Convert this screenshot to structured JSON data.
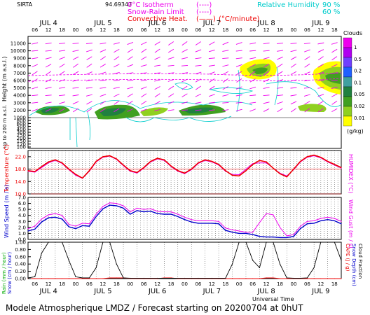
{
  "header": {
    "station": "SIRTA",
    "altitude": "94.69347",
    "legend_isotherm": "0°C Isotherm",
    "legend_isotherm_sym": "(----)",
    "legend_snowrain": "Snow-Rain Limit",
    "legend_snowrain_sym": "(----)",
    "legend_convective": "Convective Heat.",
    "legend_convective_sym": "(——)",
    "legend_convective_unit": "(°C/minute)",
    "legend_rh": "Relative Humidity",
    "legend_rh_90": "90 %",
    "legend_rh_60": "60 %"
  },
  "axes": {
    "day_labels": [
      "JUL 4",
      "JUL 5",
      "JUL 6",
      "JUL 7",
      "JUL 8",
      "JUL 9"
    ],
    "hour_labels": [
      "06",
      "12",
      "18",
      "00",
      "06",
      "12",
      "18",
      "00",
      "06",
      "12",
      "18",
      "00",
      "06",
      "12",
      "18",
      "00",
      "06",
      "12",
      "18",
      "00",
      "06",
      "12",
      "18"
    ],
    "bottom_title": "Universal Time",
    "panel1_ylabel": "Height (m a.s.l.)",
    "panel1_ylabel2": "Up to 200 m a.s.l.",
    "panel2_ylabel": "Temperature (°C)",
    "panel2_ylabel2": "HUMIDEX (°C)",
    "panel3_ylabel": "Wind Speed (m / s)",
    "panel3_ylabel2": "Wind Gust (m / s)",
    "panel4_ylabel": "Rain (mm / hour)",
    "panel4_ylabel_b": "Snow (cm / hour)",
    "panel4_ylabel2": "CAPE (J / g)",
    "panel4_ylabel2_b": "Snow Depth (cm)",
    "panel4_ylabel2_c": "Cloud Fraction"
  },
  "clouds_legend": {
    "title": "Clouds",
    "unit": "(g/kg)",
    "ticks": [
      "1",
      "0.5",
      "0.2",
      "0.1",
      "0.05",
      "0.02",
      "0.01"
    ],
    "colors": [
      "#ee00ee",
      "#b000f0",
      "#7040ff",
      "#2060ff",
      "#40a0a0",
      "#208040",
      "#40a020",
      "#90d020",
      "#ffff00"
    ]
  },
  "footer": {
    "text": "Modele Atmospherique LMDZ / Forecast starting on 20200704 at 0hUT"
  },
  "chart_data": [
    {
      "type": "heatmap",
      "name": "cloud-height",
      "y_ticks_upper": [
        1000,
        2000,
        3000,
        4000,
        5000,
        6000,
        7000,
        8000,
        9000,
        10000,
        11000
      ],
      "y_ticks_lower": [
        1000,
        800,
        600,
        500,
        400,
        300,
        250,
        200,
        150,
        120,
        100
      ],
      "x_range_hours": [
        3,
        141
      ]
    },
    {
      "type": "line",
      "name": "temperature",
      "y_ticks": [
        "22.0",
        "18.0",
        "14.0",
        "10.0"
      ],
      "ylim": [
        10,
        24
      ],
      "x": [
        3,
        6,
        9,
        12,
        15,
        18,
        21,
        24,
        27,
        30,
        33,
        36,
        39,
        42,
        45,
        48,
        51,
        54,
        57,
        60,
        63,
        66,
        69,
        72,
        75,
        78,
        81,
        84,
        87,
        90,
        93,
        96,
        99,
        102,
        105,
        108,
        111,
        114,
        117,
        120,
        123,
        126,
        129,
        132,
        135,
        138,
        141
      ],
      "temperature": [
        17.5,
        17.2,
        18.8,
        20.3,
        21,
        20,
        18,
        16.3,
        15.1,
        17.5,
        20.5,
        22,
        22.3,
        21.3,
        19.3,
        17.5,
        16.9,
        18.5,
        20.5,
        21.5,
        21,
        19,
        17.5,
        16.7,
        18,
        20,
        21,
        20.5,
        19.5,
        17.5,
        16,
        15.8,
        17.5,
        19.5,
        20.8,
        20.3,
        18.3,
        16.5,
        15.5,
        18,
        20.5,
        22,
        22.5,
        21.8,
        20.5,
        19.5,
        18.5
      ],
      "humidex": [
        17.3,
        17,
        18.5,
        20,
        20.8,
        19.8,
        17.8,
        16,
        15,
        17.3,
        20.3,
        21.8,
        22.2,
        21.1,
        19.1,
        17.3,
        16.7,
        18.3,
        20.3,
        21.3,
        20.8,
        18.8,
        17.3,
        16.5,
        17.8,
        19.8,
        20.8,
        20.3,
        19.3,
        17.3,
        16.3,
        16.2,
        18,
        19.8,
        20,
        20,
        18.3,
        16.7,
        15.8,
        17.8,
        20.3,
        21.8,
        22.3,
        21.6,
        20.3,
        19.3,
        18.3
      ]
    },
    {
      "type": "line",
      "name": "wind",
      "y_ticks": [
        "7.0",
        "6.0",
        "5.0",
        "4.0",
        "3.0",
        "2.0",
        "1.0",
        "0.0"
      ],
      "ylim": [
        0,
        7
      ],
      "x": [
        3,
        6,
        9,
        12,
        15,
        18,
        21,
        24,
        27,
        30,
        33,
        36,
        39,
        42,
        45,
        48,
        51,
        54,
        57,
        60,
        63,
        66,
        69,
        72,
        75,
        78,
        81,
        84,
        87,
        90,
        93,
        96,
        99,
        102,
        105,
        108,
        111,
        114,
        117,
        120,
        123,
        126,
        129,
        132,
        135,
        138,
        141
      ],
      "wind_speed": [
        1.4,
        1.7,
        2.9,
        3.6,
        3.7,
        3.4,
        2.1,
        1.8,
        2.3,
        2.2,
        3.8,
        5.1,
        5.7,
        5.6,
        5.2,
        4.2,
        4.8,
        4.6,
        4.7,
        4.3,
        4.2,
        4.2,
        3.8,
        3.3,
        2.9,
        2.7,
        2.7,
        2.7,
        2.6,
        1.5,
        1.2,
        1,
        1,
        0.8,
        0.5,
        0.4,
        0.4,
        0.3,
        0.3,
        0.5,
        1.8,
        2.6,
        2.7,
        3.1,
        3.3,
        3.1,
        2.6
      ],
      "wind_gust": [
        1.8,
        2.2,
        3.4,
        4.1,
        4.3,
        4,
        2.5,
        2.2,
        2.7,
        2.6,
        4.2,
        5.5,
        6.1,
        6,
        5.6,
        4.6,
        5.2,
        5,
        5.1,
        4.7,
        4.6,
        4.6,
        4.2,
        3.7,
        3.3,
        3.1,
        3.1,
        3.1,
        3,
        1.9,
        1.6,
        1.4,
        1.2,
        1.2,
        2.8,
        4.3,
        4.1,
        2,
        0.6,
        0.8,
        2.2,
        3,
        3.1,
        3.5,
        3.7,
        3.5,
        3
      ]
    },
    {
      "type": "line",
      "name": "precip-cloud",
      "y_ticks": [
        "1.00",
        "0.80",
        "0.60",
        "0.40",
        "0.20",
        "0.00"
      ],
      "ylim": [
        0,
        1
      ],
      "x": [
        3,
        6,
        9,
        12,
        15,
        18,
        21,
        24,
        27,
        30,
        33,
        36,
        39,
        42,
        45,
        48,
        51,
        54,
        57,
        60,
        63,
        66,
        69,
        72,
        75,
        78,
        81,
        84,
        87,
        90,
        93,
        96,
        99,
        102,
        105,
        108,
        111,
        114,
        117,
        120,
        123,
        126,
        129,
        132,
        135,
        138,
        141
      ],
      "cloud_fraction": [
        0.02,
        0.05,
        0.7,
        1,
        1,
        1,
        0.5,
        0.05,
        0.02,
        0.02,
        0.3,
        1,
        1,
        0.4,
        0.02,
        0.01,
        0.01,
        0.01,
        0.01,
        0.01,
        0.01,
        0.01,
        0.01,
        0.01,
        0.01,
        0.01,
        0.01,
        0.01,
        0.01,
        0.01,
        0.4,
        1,
        1,
        0.5,
        0.3,
        1,
        1,
        0.4,
        0.02,
        0.01,
        0.01,
        0.02,
        0.3,
        1,
        1,
        1,
        0.5
      ],
      "cape": [
        0,
        0,
        0,
        0,
        0,
        0,
        0,
        0,
        0,
        0,
        0,
        0,
        0.02,
        0.02,
        0.02,
        0,
        0,
        0,
        0,
        0,
        0.02,
        0.02,
        0,
        0,
        0,
        0,
        0,
        0,
        0,
        0,
        0,
        0,
        0,
        0,
        0,
        0.02,
        0.02,
        0,
        0,
        0,
        0,
        0,
        0,
        0,
        0,
        0,
        0
      ]
    }
  ]
}
